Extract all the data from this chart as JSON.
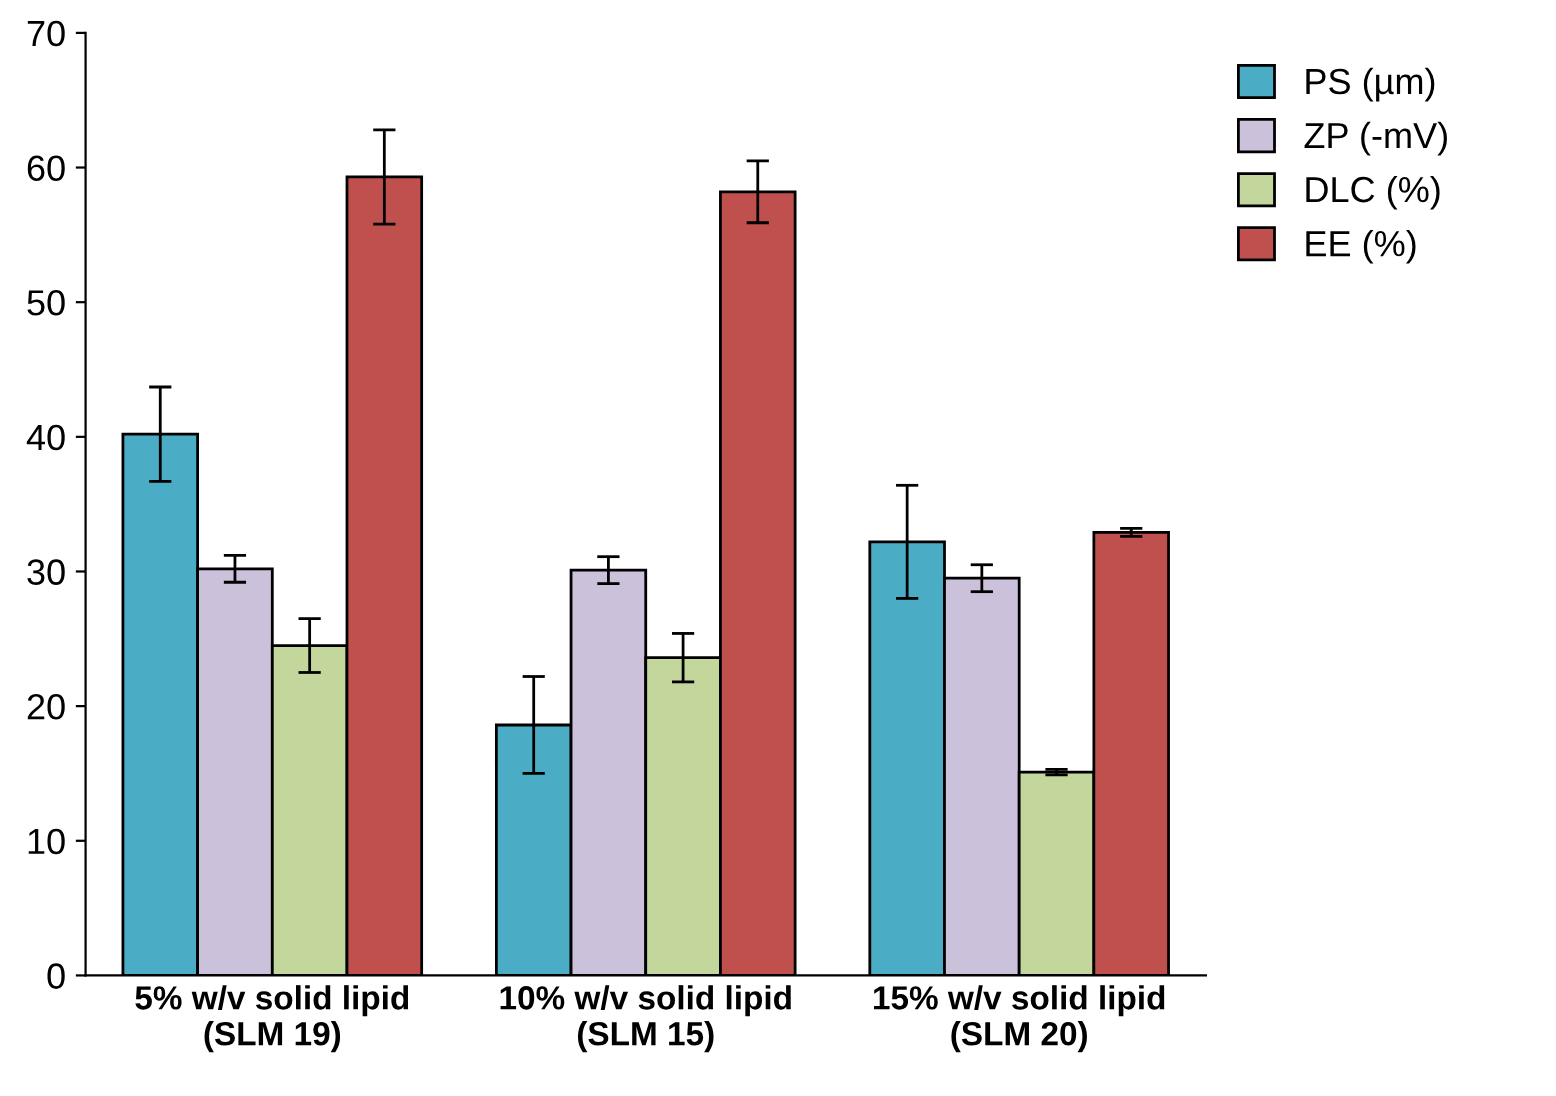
{
  "chart_data": {
    "type": "bar",
    "categories": [
      "5% w/v solid lipid (SLM 19)",
      "10% w/v solid lipid (SLM 15)",
      "15% w/v solid lipid (SLM 20)"
    ],
    "series": [
      {
        "name": "PS (µm)",
        "color": "#4bacc6",
        "values": [
          40.2,
          18.6,
          32.2
        ],
        "errors": [
          3.5,
          3.6,
          4.2
        ]
      },
      {
        "name": "ZP (-mV)",
        "color": "#ccc1da",
        "values": [
          30.2,
          30.1,
          29.5
        ],
        "errors": [
          1.0,
          1.0,
          1.0
        ]
      },
      {
        "name": "DLC (%)",
        "color": "#c3d69b",
        "values": [
          24.5,
          23.6,
          15.1
        ],
        "errors": [
          2.0,
          1.8,
          0.2
        ]
      },
      {
        "name": "EE (%)",
        "color": "#c0504d",
        "values": [
          59.3,
          58.2,
          32.9
        ],
        "errors": [
          3.5,
          2.3,
          0.3
        ]
      }
    ],
    "ylim": [
      0,
      70
    ],
    "yticks": [
      0,
      10,
      20,
      30,
      40,
      50,
      60,
      70
    ],
    "grid": false,
    "legend": "top right"
  }
}
